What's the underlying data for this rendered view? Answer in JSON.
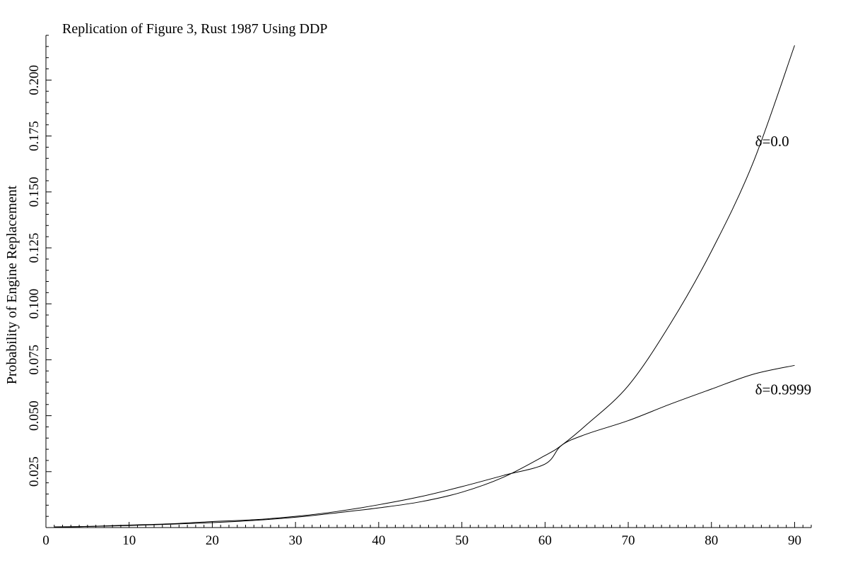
{
  "chart_data": {
    "type": "line",
    "title": "Replication of Figure 3, Rust 1987 Using DDP",
    "xlabel": "",
    "ylabel": "Probability of Engine Replacement",
    "xlim": [
      0,
      92
    ],
    "ylim": [
      0,
      0.22
    ],
    "x_ticks": [
      0,
      10,
      20,
      30,
      40,
      50,
      60,
      70,
      80,
      90
    ],
    "x_tick_labels": [
      "0",
      "10",
      "20",
      "30",
      "40",
      "50",
      "60",
      "70",
      "80",
      "90"
    ],
    "y_ticks": [
      0.025,
      0.05,
      0.075,
      0.1,
      0.125,
      0.15,
      0.175,
      0.2
    ],
    "y_tick_labels": [
      "0.025",
      "0.050",
      "0.075",
      "0.100",
      "0.125",
      "0.150",
      "0.175",
      "0.200"
    ],
    "grid": false,
    "series": [
      {
        "name": "δ=0.0",
        "x": [
          1,
          5,
          10,
          15,
          20,
          25,
          30,
          35,
          40,
          45,
          50,
          55,
          60,
          62,
          65,
          70,
          75,
          80,
          85,
          90
        ],
        "y": [
          0.0003,
          0.0005,
          0.0009,
          0.0015,
          0.0022,
          0.0032,
          0.0046,
          0.0066,
          0.0088,
          0.0115,
          0.0158,
          0.0225,
          0.0322,
          0.0368,
          0.046,
          0.0634,
          0.0907,
          0.1235,
          0.163,
          0.2155
        ]
      },
      {
        "name": "δ=0.9999",
        "x": [
          1,
          5,
          10,
          15,
          20,
          25,
          30,
          35,
          40,
          45,
          50,
          55,
          60,
          62,
          65,
          70,
          75,
          80,
          85,
          90
        ],
        "y": [
          0.0002,
          0.0005,
          0.0011,
          0.0017,
          0.0027,
          0.0035,
          0.005,
          0.0072,
          0.0102,
          0.0138,
          0.0183,
          0.0233,
          0.0284,
          0.0368,
          0.0418,
          0.0478,
          0.0551,
          0.0619,
          0.0685,
          0.0725
        ]
      }
    ],
    "annotations": [
      {
        "text": "δ=0.0",
        "x": 85,
        "y": 0.173
      },
      {
        "text": "δ=0.9999",
        "x": 85,
        "y": 0.062
      }
    ]
  }
}
